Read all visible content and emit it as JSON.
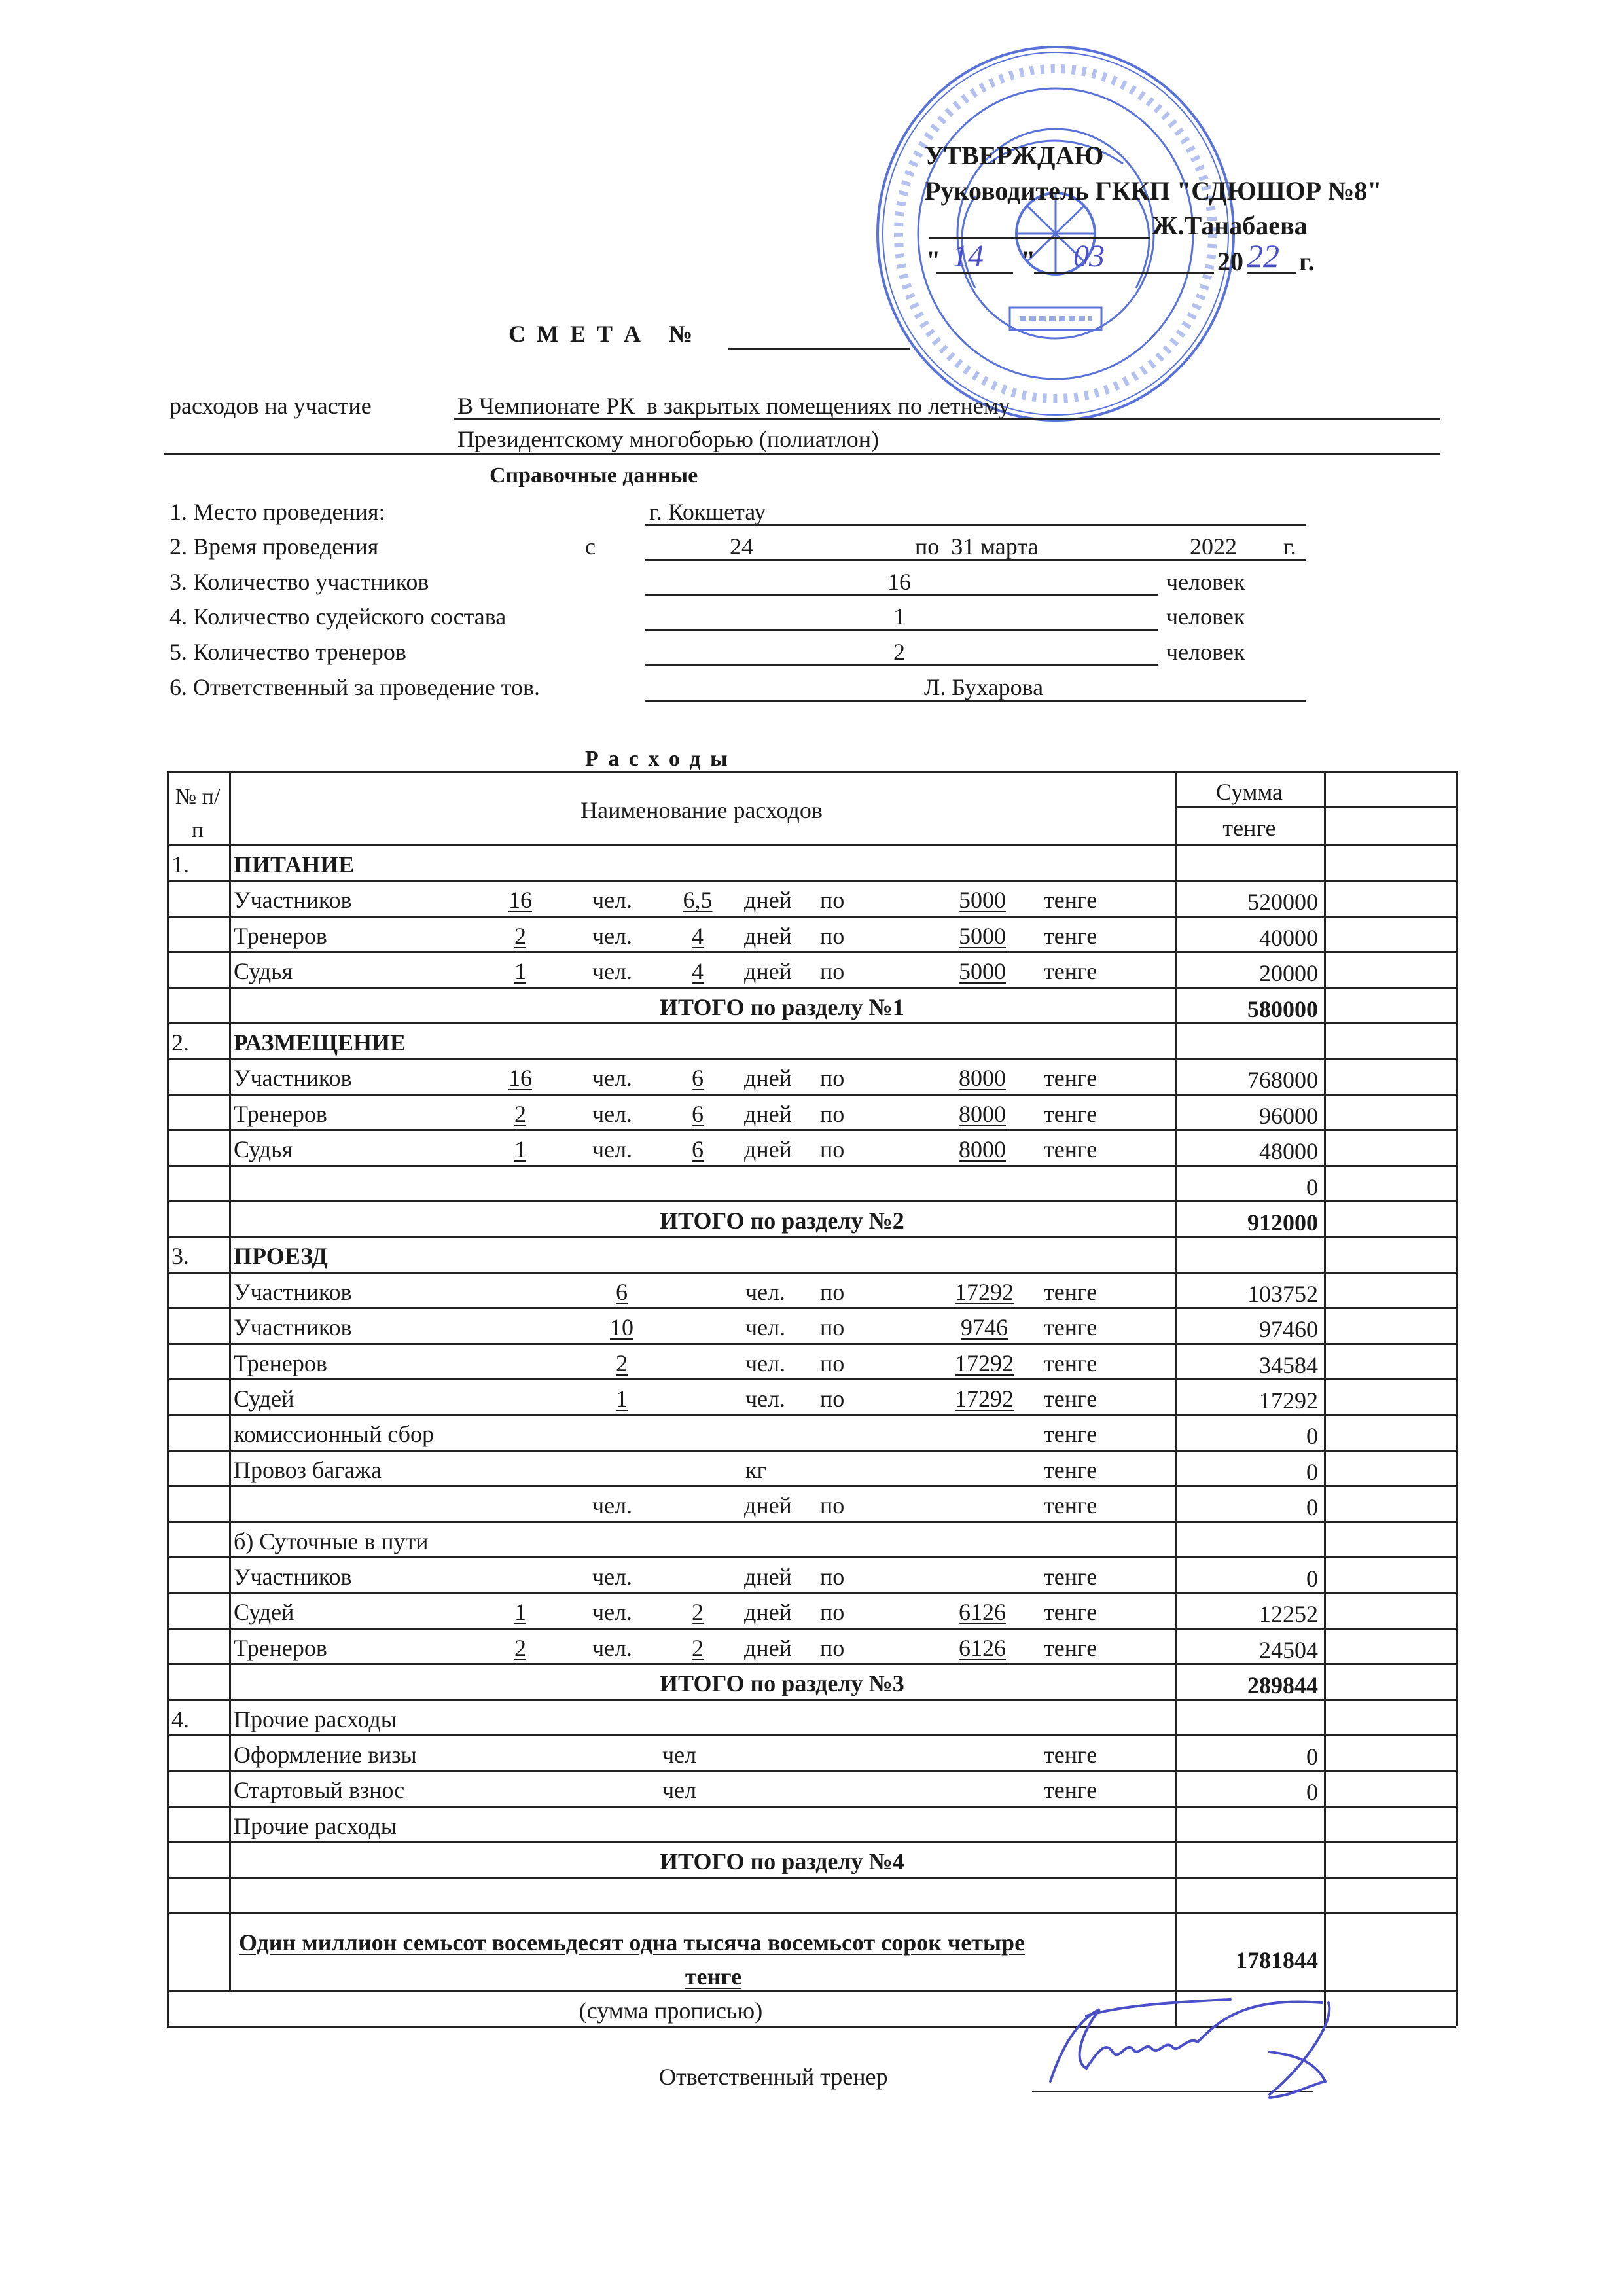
{
  "approval": {
    "title": "УТВЕРЖДАЮ",
    "position": "Руководитель ГККП \"СДЮШОР №8\"",
    "name": "Ж.Танабаева",
    "date_quote_open": "\"",
    "date_day": "14",
    "date_quote_close": "\"",
    "date_month": "03",
    "year_prefix": "20",
    "year_suffix": "22",
    "year_unit": "г."
  },
  "stamp": {
    "ring_text": "Қазақстан Республикасы Алматы қаласы Спорт басқармасының «№8 Олимпиадалық резервтің мамандандырылған балалар-жасөспірімдер мектебі» мемлекеттік коммуналдық қазыналық кәсіпорны",
    "bin": "БСН 030 740 003 976",
    "emblem_text": "QAZAQSTAN",
    "color": "#2f4fd0"
  },
  "doc_title": {
    "label": "С М Е Т А   №",
    "number": ""
  },
  "purpose": {
    "label": "расходов на участие",
    "line1": "В Чемпионате РК  в закрытых помещениях по летнему",
    "line2": "Президентскому многоборью (полиатлон)"
  },
  "reference": {
    "title": "Справочные данные",
    "place_label": "1. Место проведения:",
    "place_value": "г. Кокшетау",
    "time_label": "2. Время проведения",
    "time_from": "с",
    "time_start": "24",
    "time_end": "по  31 марта",
    "time_year": "2022",
    "time_year_unit": "г.",
    "participants_label": "3. Количество участников",
    "participants_value": "16",
    "judges_label": "4. Количество судейского состава",
    "judges_value": "1",
    "coaches_label": "5. Количество тренеров",
    "coaches_value": "2",
    "unit_people": "человек",
    "responsible_label": "6. Ответственный за проведение тов.",
    "responsible_value": "Л. Бухарова"
  },
  "expenses_title": "Р а с х о д ы",
  "table": {
    "headers": {
      "no": "№ п/п",
      "name": "Наименование расходов",
      "sum": "Сумма",
      "currency": "тенге"
    },
    "rows": [
      {
        "no": "1.",
        "label": "ПИТАНИЕ",
        "kind": "section",
        "bold": true
      },
      {
        "kind": "a",
        "label": "Участников",
        "qty": "16",
        "chel": "чел.",
        "days": "6,5",
        "dney": "дней",
        "po": "по",
        "price": "5000",
        "tenge": "тенге",
        "sum": "520000"
      },
      {
        "kind": "a",
        "label": "Тренеров",
        "qty": "2",
        "chel": "чел.",
        "days": "4",
        "dney": "дней",
        "po": "по",
        "price": "5000",
        "tenge": "тенге",
        "sum": "40000"
      },
      {
        "kind": "a",
        "label": "Судья",
        "qty": "1",
        "chel": "чел.",
        "days": "4",
        "dney": "дней",
        "po": "по",
        "price": "5000",
        "tenge": "тенге",
        "sum": "20000"
      },
      {
        "kind": "total",
        "label": "ИТОГО по разделу №1",
        "sum": "580000"
      },
      {
        "no": "2.",
        "label": "РАЗМЕЩЕНИЕ",
        "kind": "section",
        "bold": true
      },
      {
        "kind": "a",
        "label": "Участников",
        "qty": "16",
        "chel": "чел.",
        "days": "6",
        "dney": "дней",
        "po": "по",
        "price": "8000",
        "tenge": "тенге",
        "sum": "768000"
      },
      {
        "kind": "a",
        "label": "Тренеров",
        "qty": "2",
        "chel": "чел.",
        "days": "6",
        "dney": "дней",
        "po": "по",
        "price": "8000",
        "tenge": "тенге",
        "sum": "96000"
      },
      {
        "kind": "a",
        "label": "Судья",
        "qty": "1",
        "chel": "чел.",
        "days": "6",
        "dney": "дней",
        "po": "по",
        "price": "8000",
        "tenge": "тенге",
        "sum": "48000"
      },
      {
        "kind": "a",
        "sum": "0"
      },
      {
        "kind": "total",
        "label": "ИТОГО по разделу №2",
        "sum": "912000"
      },
      {
        "no": "3.",
        "label": "ПРОЕЗД",
        "kind": "section",
        "bold": true
      },
      {
        "kind": "b",
        "label": "Участников",
        "qty": "6",
        "chel": "чел.",
        "po": "по",
        "price": "17292",
        "tenge": "тенге",
        "sum": "103752"
      },
      {
        "kind": "b",
        "label": "Участников",
        "qty": "10",
        "chel": "чел.",
        "po": "по",
        "price": "9746",
        "tenge": "тенге",
        "sum": "97460"
      },
      {
        "kind": "b",
        "label": "Тренеров",
        "qty": "2",
        "chel": "чел.",
        "po": "по",
        "price": "17292",
        "tenge": "тенге",
        "sum": "34584"
      },
      {
        "kind": "b",
        "label": "Судей",
        "qty": "1",
        "chel": "чел.",
        "po": "по",
        "price": "17292",
        "tenge": "тенге",
        "sum": "17292"
      },
      {
        "kind": "a",
        "label": "комиссионный сбор",
        "tenge": "тенге",
        "sum": "0"
      },
      {
        "kind": "kg",
        "label": "Провоз багажа",
        "unit": "кг",
        "tenge": "тенге",
        "sum": "0"
      },
      {
        "kind": "a",
        "chel": "чел.",
        "dney": "дней",
        "po": "по",
        "tenge": "тенге",
        "sum": "0"
      },
      {
        "kind": "a",
        "label": "б) Суточные в пути"
      },
      {
        "kind": "a",
        "label": "Участников",
        "chel": "чел.",
        "dney": "дней",
        "po": "по",
        "tenge": "тенге",
        "sum": "0"
      },
      {
        "kind": "a",
        "label": "Судей",
        "qty": "1",
        "chel": "чел.",
        "days": "2",
        "dney": "дней",
        "po": "по",
        "price": "6126",
        "tenge": "тенге",
        "sum": "12252"
      },
      {
        "kind": "a",
        "label": "Тренеров",
        "qty": "2",
        "chel": "чел.",
        "days": "2",
        "dney": "дней",
        "po": "по",
        "price": "6126",
        "tenge": "тенге",
        "sum": "24504"
      },
      {
        "kind": "total",
        "label": "ИТОГО по разделу №3",
        "sum": "289844"
      },
      {
        "no": "4.",
        "label": "Прочие расходы",
        "kind": "section"
      },
      {
        "kind": "visa",
        "label": "Оформление визы",
        "unit": "чел",
        "tenge": "тенге",
        "sum": "0"
      },
      {
        "kind": "visa",
        "label": "Стартовый взнос",
        "unit": "чел",
        "tenge": "тенге",
        "sum": "0"
      },
      {
        "kind": "a",
        "label": "Прочие расходы"
      },
      {
        "kind": "total",
        "label": "ИТОГО по разделу №4"
      },
      {
        "kind": "a"
      }
    ],
    "grand_total_words_line1": "Один миллион семьсот восемьдесят одна тысяча восемьсот сорок четыре",
    "grand_total_words_line2": "тенге",
    "grand_total": "1781844",
    "words_caption": "(сумма прописью)"
  },
  "signature": {
    "label": "Ответственный тренер",
    "color": "#4a4fc8"
  }
}
